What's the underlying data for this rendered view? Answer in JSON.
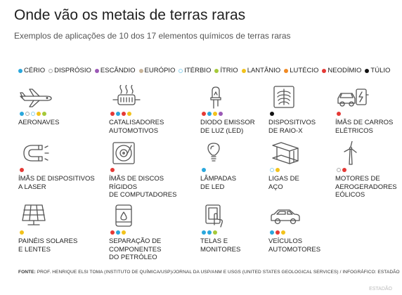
{
  "title": "Onde vão os metais de terras raras",
  "subtitle": "Exemplos de aplicações de 10 dos 17 elementos químicos de terras raras",
  "legend": [
    {
      "key": "cerio",
      "label": "CÉRIO",
      "color": "#2aa7dc",
      "outline": false
    },
    {
      "key": "disprosio",
      "label": "DISPRÓSIO",
      "color": "#aaaaaa",
      "outline": true
    },
    {
      "key": "escandio",
      "label": "ESCÂNDIO",
      "color": "#9b59b6",
      "outline": false
    },
    {
      "key": "europio",
      "label": "EURÓPIO",
      "color": "#c8b49a",
      "outline": false
    },
    {
      "key": "iterbio",
      "label": "ITÉRBIO",
      "color": "#8fd3ee",
      "outline": true
    },
    {
      "key": "itrio",
      "label": "ÍTRIO",
      "color": "#a5c93a",
      "outline": false
    },
    {
      "key": "lantanio",
      "label": "LANTÂNIO",
      "color": "#f2c21b",
      "outline": false
    },
    {
      "key": "lutecio",
      "label": "LUTÉCIO",
      "color": "#f08a24",
      "outline": false
    },
    {
      "key": "neodimio",
      "label": "NEODÍMIO",
      "color": "#e53935",
      "outline": false
    },
    {
      "key": "tulio",
      "label": "TÚLIO",
      "color": "#111111",
      "outline": false
    }
  ],
  "items": [
    {
      "name": "aeronaves",
      "icon": "airplane-icon",
      "label": "AERONAVES",
      "elements": [
        "cerio",
        "disprosio",
        "iterbio",
        "lantanio",
        "itrio"
      ]
    },
    {
      "name": "catalisadores",
      "icon": "catalytic-converter-icon",
      "label": "CATALISADORES\nAUTOMOTIVOS",
      "elements": [
        "neodimio",
        "cerio",
        "neodimio",
        "lantanio"
      ]
    },
    {
      "name": "diodo",
      "icon": "led-diode-icon",
      "label": "DIODO EMISSOR\nDE LUZ (LED)",
      "elements": [
        "neodimio",
        "cerio",
        "lantanio",
        "escandio"
      ]
    },
    {
      "name": "raio-x",
      "icon": "xray-icon",
      "label": "DISPOSITIVOS\nDE RAIO-X",
      "elements": [
        "tulio"
      ]
    },
    {
      "name": "imas-carros",
      "icon": "electric-car-icon",
      "label": "ÍMÃS DE CARROS\nELÉTRICOS",
      "elements": [
        "neodimio"
      ]
    },
    {
      "name": "imas-laser",
      "icon": "magnet-icon",
      "label": "ÍMÃS DE DISPOSITIVOS\nA LASER",
      "elements": [
        "neodimio"
      ]
    },
    {
      "name": "imas-discos",
      "icon": "hard-disk-icon",
      "label": "ÍMÃS DE DISCOS RÍGIDOS\nDE COMPUTADORES",
      "elements": [
        "neodimio"
      ]
    },
    {
      "name": "lampadas",
      "icon": "light-bulb-icon",
      "label": "LÂMPADAS\nDE LED",
      "elements": [
        "cerio"
      ]
    },
    {
      "name": "ligas",
      "icon": "steel-beam-icon",
      "label": "LIGAS DE\nAÇO",
      "elements": [
        "iterbio",
        "lantanio"
      ]
    },
    {
      "name": "aerogeradores",
      "icon": "wind-turbine-icon",
      "label": "MOTORES DE\nAEROGERADORES\nEÓLICOS",
      "elements": [
        "disprosio",
        "neodimio"
      ]
    },
    {
      "name": "paineis",
      "icon": "solar-panel-icon",
      "label": "PAINÉIS SOLARES\nE LENTES",
      "elements": [
        "lantanio"
      ]
    },
    {
      "name": "petroleo",
      "icon": "oil-barrel-icon",
      "label": "SEPARAÇÃO DE\nCOMPONENTES\nDO PETRÓLEO",
      "elements": [
        "neodimio",
        "cerio",
        "lantanio"
      ]
    },
    {
      "name": "telas",
      "icon": "touch-screen-icon",
      "label": "TELAS E\nMONITORES",
      "elements": [
        "cerio",
        "cerio",
        "itrio"
      ]
    },
    {
      "name": "veiculos",
      "icon": "car-icon",
      "label": "VEÍCULOS\nAUTOMOTORES",
      "elements": [
        "cerio",
        "neodimio",
        "lantanio"
      ]
    }
  ],
  "source_label": "FONTE:",
  "source_text": "PROF. HENRIQUE ELSI TOMA (INSTITUTO DE QUÍMICA/USP)/JORNAL DA USP/ANM E USGS (UNITED STATES GEOLOGICAL SERVICES) / INFOGRÁFICO: ESTADÃO",
  "credit": "ESTADÃO"
}
